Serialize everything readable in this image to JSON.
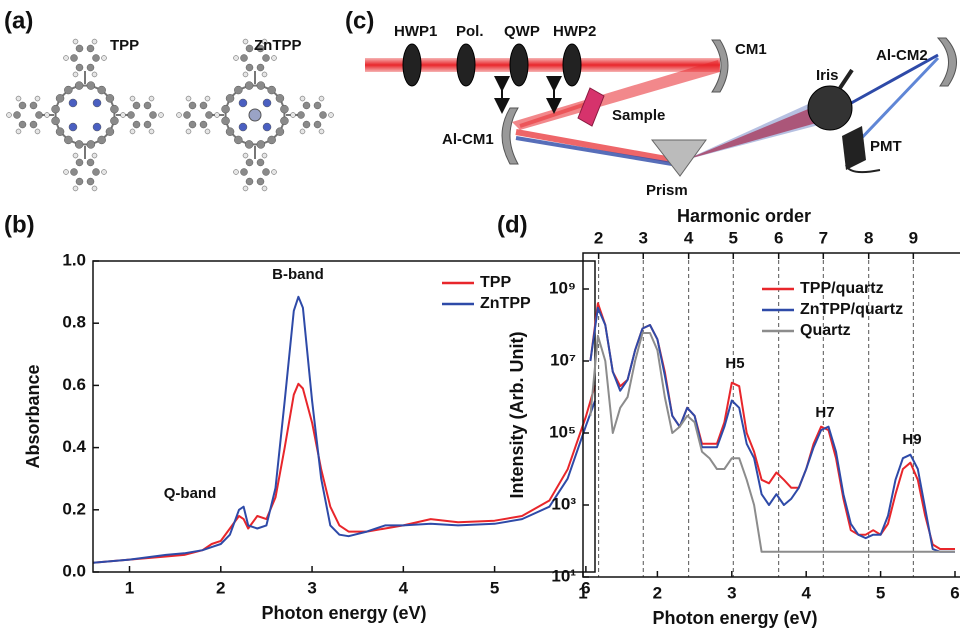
{
  "diagram": {
    "panel_a": {
      "label": "(a)",
      "molecules": [
        "TPP",
        "ZnTPP"
      ]
    },
    "panel_c": {
      "label": "(c)",
      "components": [
        "HWP1",
        "Pol.",
        "QWP",
        "HWP2",
        "CM1",
        "Al-CM2",
        "Iris",
        "Sample",
        "Al-CM1",
        "Prism",
        "PMT"
      ]
    }
  },
  "chart_data": [
    {
      "type": "line",
      "panel": "(b)",
      "x_label": "Photon energy (eV)",
      "y_label": "Absorbance",
      "xlim": [
        0.6,
        6.1
      ],
      "xticks": [
        1,
        2,
        3,
        4,
        5,
        6
      ],
      "ylim": [
        0,
        1
      ],
      "yticks": [
        {
          "value": 0,
          "label": "0.0"
        },
        0.2,
        0.4,
        0.6,
        0.8,
        {
          "value": 1,
          "label": "1.0"
        }
      ],
      "legend": "upper-right",
      "annotations": [
        "Q-band",
        "B-band"
      ],
      "x": [
        0.6,
        1.0,
        1.4,
        1.6,
        1.8,
        1.9,
        2.0,
        2.1,
        2.2,
        2.25,
        2.3,
        2.4,
        2.5,
        2.6,
        2.7,
        2.8,
        2.85,
        2.9,
        3.0,
        3.1,
        3.2,
        3.3,
        3.4,
        3.6,
        3.8,
        4.0,
        4.3,
        4.6,
        5.0,
        5.3,
        5.6,
        5.8,
        6.0,
        6.1
      ],
      "series": [
        {
          "name": "TPP",
          "color": "#e8262b",
          "values": [
            0.03,
            0.04,
            0.05,
            0.055,
            0.07,
            0.09,
            0.1,
            0.14,
            0.18,
            0.17,
            0.14,
            0.18,
            0.17,
            0.24,
            0.4,
            0.57,
            0.605,
            0.59,
            0.48,
            0.33,
            0.21,
            0.15,
            0.13,
            0.13,
            0.14,
            0.15,
            0.17,
            0.16,
            0.165,
            0.18,
            0.23,
            0.33,
            0.5,
            0.6
          ]
        },
        {
          "name": "ZnTPP",
          "color": "#2e4aa8",
          "values": [
            0.03,
            0.04,
            0.055,
            0.06,
            0.07,
            0.08,
            0.09,
            0.12,
            0.2,
            0.21,
            0.15,
            0.14,
            0.15,
            0.27,
            0.55,
            0.84,
            0.885,
            0.85,
            0.55,
            0.3,
            0.15,
            0.12,
            0.115,
            0.13,
            0.15,
            0.15,
            0.155,
            0.15,
            0.155,
            0.17,
            0.21,
            0.3,
            0.47,
            0.55
          ]
        }
      ]
    },
    {
      "type": "line",
      "panel": "(d)",
      "x_label": "Photon energy (eV)",
      "y_label": "Intensity (Arb. Unit)",
      "x2_label": "Harmonic order",
      "log_y": true,
      "xlim": [
        1,
        6
      ],
      "xticks": [
        1,
        2,
        3,
        4,
        5,
        6
      ],
      "x2ticks": [
        {
          "value": 1.21,
          "label": "2"
        },
        {
          "value": 1.81,
          "label": "3"
        },
        {
          "value": 2.42,
          "label": "4"
        },
        {
          "value": 3.02,
          "label": "5"
        },
        {
          "value": 3.63,
          "label": "6"
        },
        {
          "value": 4.23,
          "label": "7"
        },
        {
          "value": 4.84,
          "label": "8"
        },
        {
          "value": 5.44,
          "label": "9"
        }
      ],
      "ylim": [
        10,
        10000000000
      ],
      "yticks": [
        {
          "value": 10,
          "label": "10¹"
        },
        {
          "value": 1000,
          "label": "10³"
        },
        {
          "value": 100000,
          "label": "10⁵"
        },
        {
          "value": 10000000,
          "label": "10⁷"
        },
        {
          "value": 1000000000,
          "label": "10⁹"
        }
      ],
      "legend": "upper-right",
      "annotations": [
        "H5",
        "H7",
        "H9"
      ],
      "x": [
        1.1,
        1.2,
        1.3,
        1.4,
        1.5,
        1.6,
        1.7,
        1.8,
        1.9,
        2.0,
        2.1,
        2.2,
        2.3,
        2.4,
        2.5,
        2.6,
        2.7,
        2.8,
        2.9,
        3.0,
        3.1,
        3.2,
        3.3,
        3.4,
        3.5,
        3.6,
        3.7,
        3.8,
        3.9,
        4.0,
        4.1,
        4.2,
        4.3,
        4.4,
        4.5,
        4.6,
        4.7,
        4.8,
        4.9,
        5.0,
        5.1,
        5.2,
        5.3,
        5.4,
        5.5,
        5.6,
        5.7,
        5.8,
        5.9,
        6.0
      ],
      "series": [
        {
          "name": "TPP/quartz",
          "color": "#e8262b",
          "values": [
            10000000,
            400000000,
            100000000,
            5000000,
            2000000,
            3000000,
            20000000,
            80000000,
            100000000,
            40000000,
            5000000,
            300000,
            150000,
            500000,
            300000,
            50000,
            50000,
            50000,
            200000,
            2500000,
            2000000,
            100000,
            30000,
            5000,
            4000,
            8000,
            5000,
            3000,
            3000,
            10000,
            50000,
            150000,
            120000,
            20000,
            1500,
            200,
            150,
            150,
            200,
            150,
            300,
            2000,
            10000,
            15000,
            5000,
            500,
            80,
            60,
            60,
            60
          ]
        },
        {
          "name": "ZnTPP/quartz",
          "color": "#2e4aa8",
          "values": [
            10000000,
            300000000,
            100000000,
            5000000,
            1500000,
            3000000,
            20000000,
            80000000,
            100000000,
            40000000,
            4000000,
            300000,
            150000,
            500000,
            300000,
            40000,
            40000,
            40000,
            150000,
            800000,
            500000,
            50000,
            20000,
            2000,
            1000,
            2000,
            1000,
            1500,
            3000,
            10000,
            40000,
            120000,
            150000,
            30000,
            2000,
            300,
            150,
            120,
            150,
            150,
            500,
            5000,
            20000,
            25000,
            10000,
            800,
            60,
            50,
            50,
            50
          ]
        },
        {
          "name": "Quartz",
          "color": "#8c8c8c",
          "values": [
            300000,
            50000000,
            10000000,
            100000,
            500000,
            1000000,
            10000000,
            60000000,
            60000000,
            20000000,
            1000000,
            100000,
            150000,
            300000,
            200000,
            30000,
            20000,
            10000,
            10000,
            20000,
            20000,
            5000,
            1000,
            50,
            50,
            50,
            50,
            50,
            50,
            50,
            50,
            50,
            50,
            50,
            50,
            50,
            50,
            50,
            50,
            50,
            50,
            50,
            50,
            50,
            50,
            50,
            50,
            50,
            50,
            50
          ]
        }
      ]
    }
  ]
}
